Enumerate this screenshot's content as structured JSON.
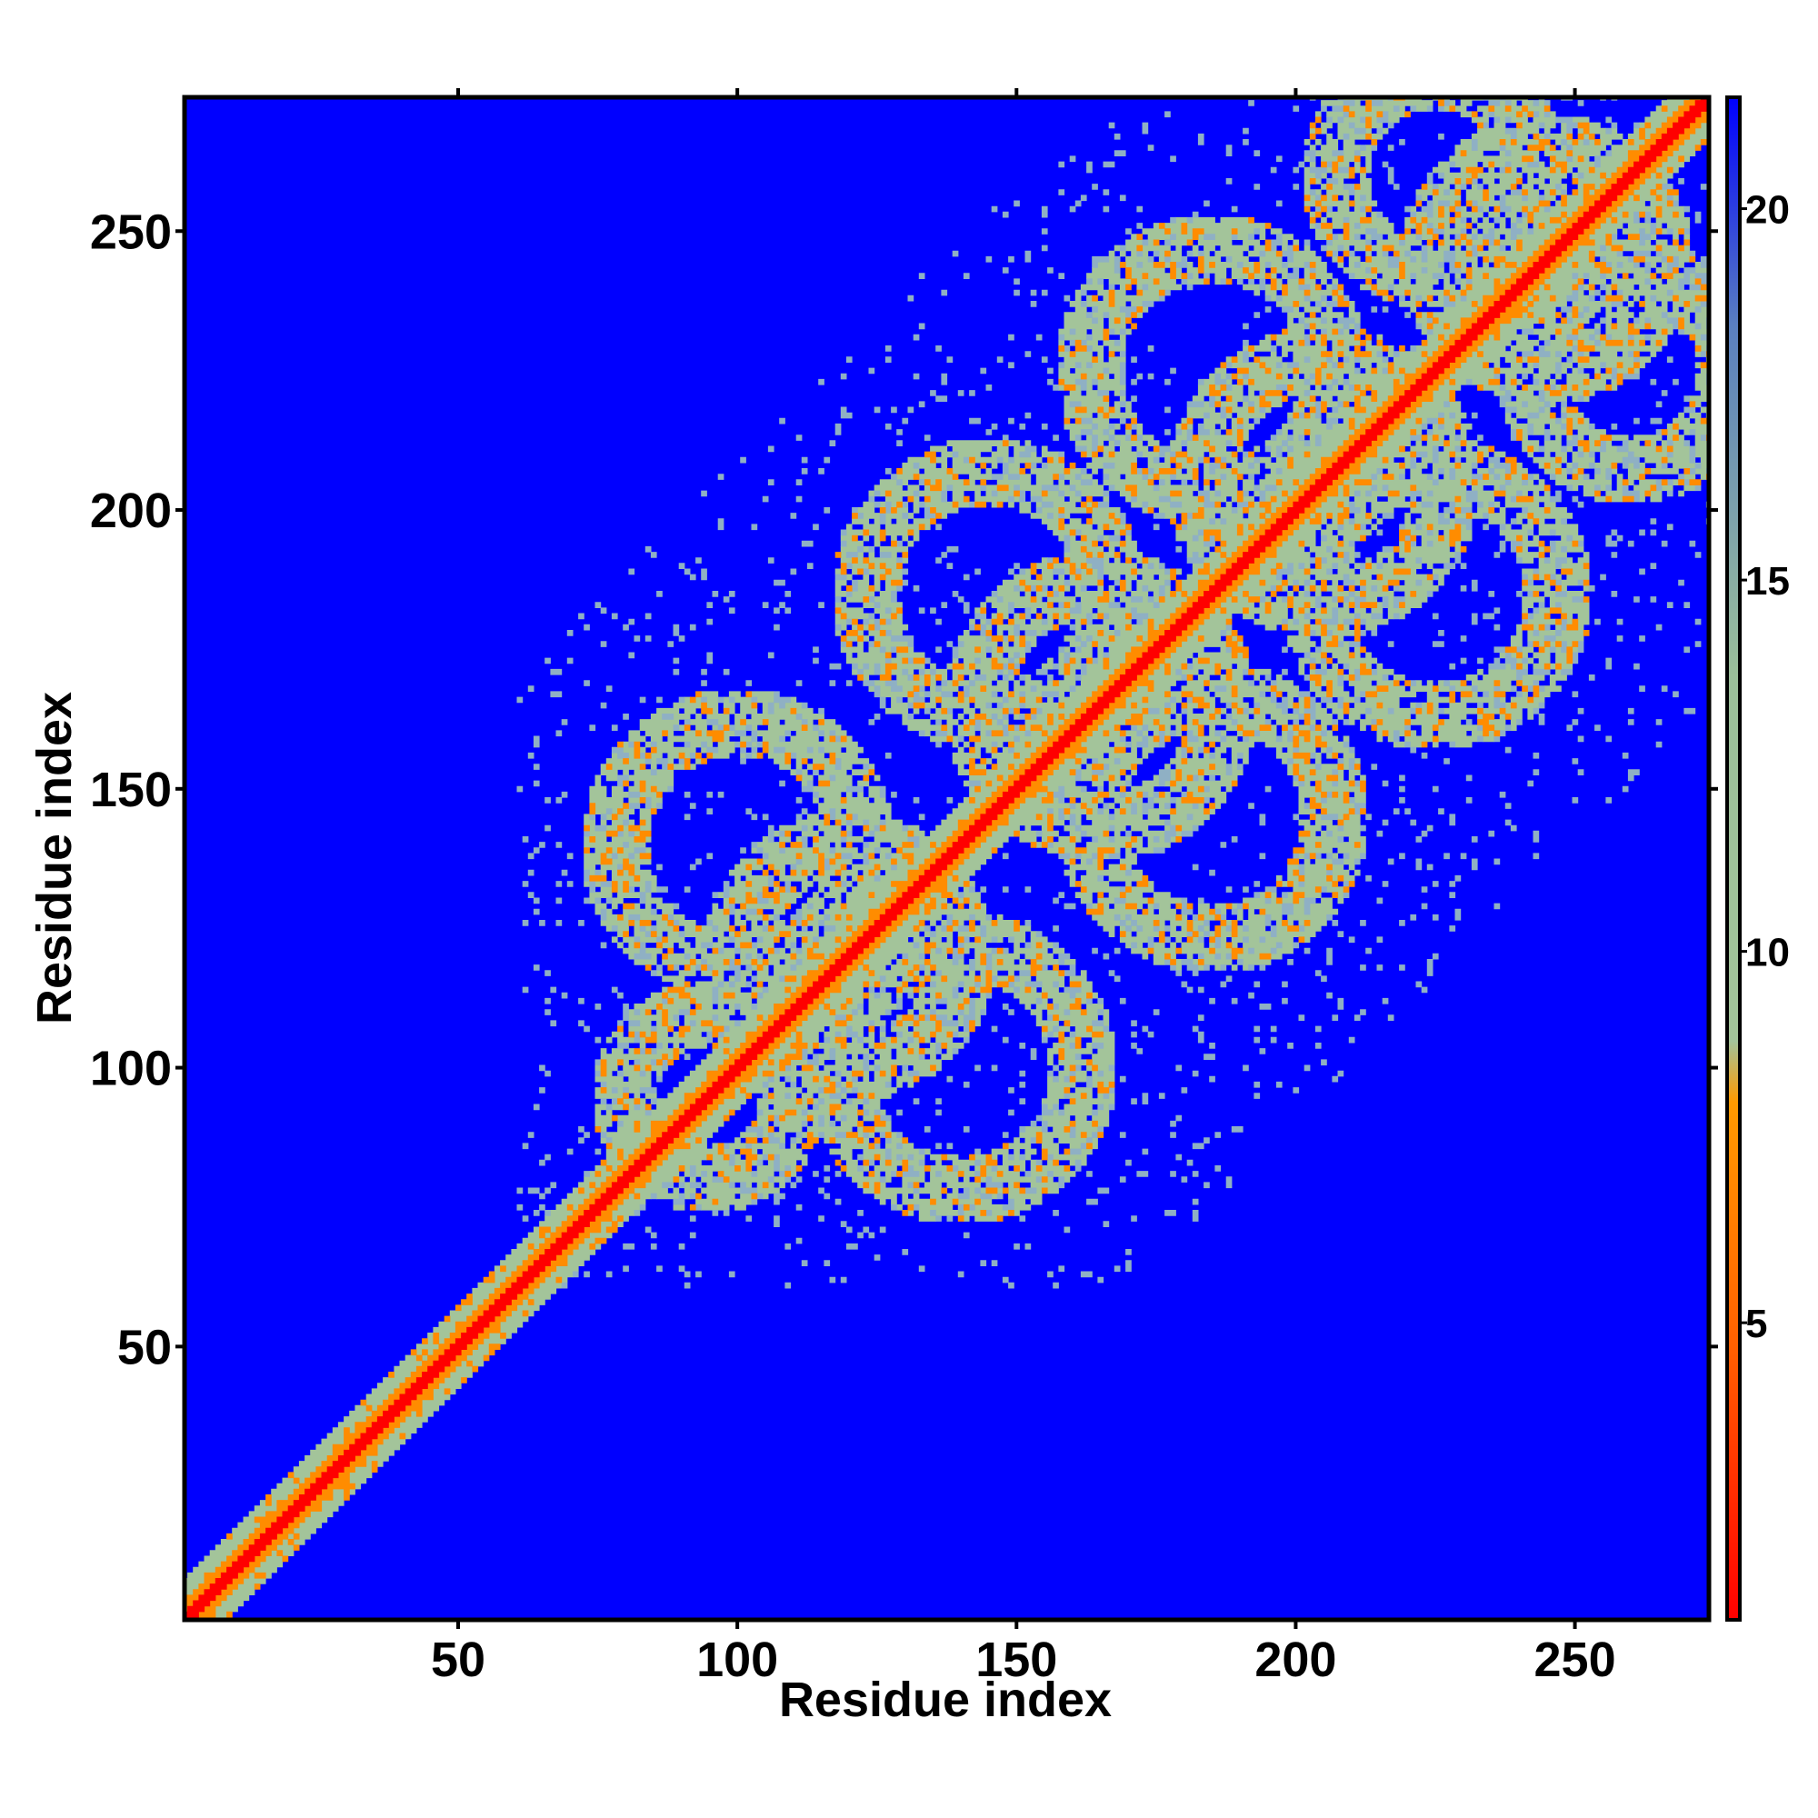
{
  "chart_data": {
    "type": "heatmap",
    "title": "",
    "xlabel": "Residue index",
    "ylabel": "Residue index",
    "xlim": [
      1,
      274
    ],
    "ylim": [
      1,
      274
    ],
    "x_ticks": [
      50,
      100,
      150,
      200,
      250
    ],
    "y_ticks": [
      50,
      100,
      150,
      200,
      250
    ],
    "n_residues": 274,
    "colorbar": {
      "range": [
        1,
        21.5
      ],
      "ticks": [
        5,
        10,
        15,
        20
      ],
      "colors": [
        "#ff0000",
        "#ff8c00",
        "#a3c49a",
        "#0000ff"
      ]
    },
    "background_color": "#0000ff",
    "features": [
      {
        "kind": "diagonal",
        "from": 1,
        "to": 274
      },
      {
        "kind": "contact-ring",
        "center": [
          120,
          120
        ],
        "radius": 20
      },
      {
        "kind": "contact-ring",
        "center": [
          165,
          165
        ],
        "radius": 22
      },
      {
        "kind": "contact-ring",
        "center": [
          205,
          205
        ],
        "radius": 22
      },
      {
        "kind": "contact-ring",
        "center": [
          245,
          245
        ],
        "radius": 20
      },
      {
        "kind": "contact-ring",
        "center": [
          140,
          100
        ],
        "radius": 22
      },
      {
        "kind": "contact-ring",
        "center": [
          100,
          140
        ],
        "radius": 22
      },
      {
        "kind": "contact-ring",
        "center": [
          185,
          145
        ],
        "radius": 22
      },
      {
        "kind": "contact-ring",
        "center": [
          145,
          185
        ],
        "radius": 22
      },
      {
        "kind": "contact-ring",
        "center": [
          225,
          185
        ],
        "radius": 22
      },
      {
        "kind": "contact-ring",
        "center": [
          185,
          225
        ],
        "radius": 22
      },
      {
        "kind": "contact-ring",
        "center": [
          260,
          225
        ],
        "radius": 18
      },
      {
        "kind": "contact-ring",
        "center": [
          225,
          260
        ],
        "radius": 18
      },
      {
        "kind": "contact-ring",
        "center": [
          95,
          95
        ],
        "radius": 15
      }
    ]
  }
}
